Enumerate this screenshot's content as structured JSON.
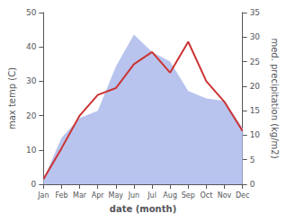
{
  "chart_data": {
    "type": "line",
    "xlabel": "date (month)",
    "ylabel": "max temp (C)",
    "y2label": "med. precipitation (kg/m2)",
    "categories": [
      "Jan",
      "Feb",
      "Mar",
      "Apr",
      "May",
      "Jun",
      "Jul",
      "Aug",
      "Sep",
      "Oct",
      "Nov",
      "Dec"
    ],
    "series": [
      {
        "type": "area",
        "axis": "y2",
        "color": "#b8c4ee",
        "values": [
          1.0,
          9.5,
          13.5,
          15.0,
          24.0,
          30.5,
          27.0,
          25.0,
          19.0,
          17.5,
          17.0,
          11.5
        ]
      },
      {
        "type": "line",
        "color": "#cc3333",
        "values": [
          1.5,
          10.5,
          20.0,
          26.0,
          28.0,
          35.0,
          38.5,
          32.5,
          41.5,
          30.0,
          24.0,
          15.5
        ]
      }
    ],
    "ylim": [
      0,
      50
    ],
    "yticks": [
      0,
      10,
      20,
      30,
      40,
      50
    ],
    "y2lim": [
      0,
      35
    ],
    "y2ticks": [
      0,
      5,
      10,
      15,
      20,
      25,
      30,
      35
    ],
    "grid": false
  }
}
